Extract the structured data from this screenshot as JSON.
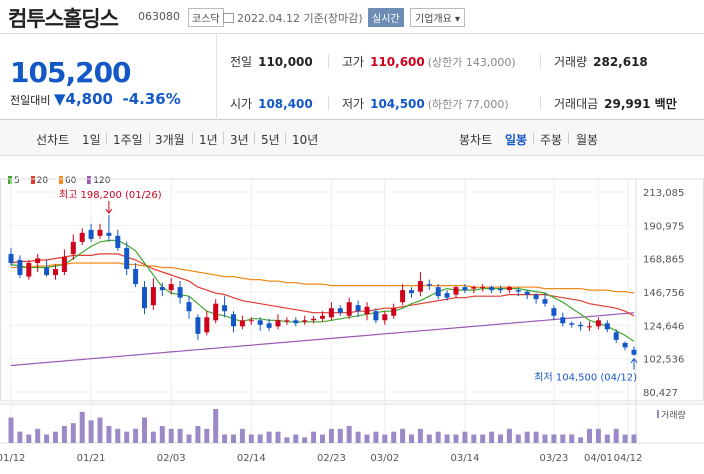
{
  "header": {
    "stock_name": "컴투스홀딩스",
    "stock_code": "063080",
    "market": "코스닥",
    "date_text": "2022.04.12  기준(장마감)",
    "realtime_label": "실시간",
    "company_label": "기업개요"
  },
  "price": {
    "current": "105,200",
    "change_label": "전일대비",
    "change_amount": "4,800",
    "change_pct": "-4.36%"
  },
  "stats": {
    "prev_close_label": "전일",
    "prev_close": "110,000",
    "high_label": "고가",
    "high": "110,600",
    "upper_limit": "(상한가 143,000)",
    "volume_label": "거래량",
    "volume": "282,618",
    "open_label": "시가",
    "open": "108,400",
    "low_label": "저가",
    "low": "104,500",
    "lower_limit": "(하한가 77,000)",
    "amount_label": "거래대금",
    "amount": "29,991 백만"
  },
  "periods": {
    "line_chart": "선차트",
    "items": [
      "1일",
      "1주일",
      "3개월",
      "1년",
      "3년",
      "5년",
      "10년"
    ],
    "candle_chart": "봉차트",
    "candle_items": [
      "일봉",
      "주봉",
      "월봉"
    ],
    "active_candle": "일봉"
  },
  "colors": {
    "up": "#d0021b",
    "down": "#1458c8",
    "ma5": "#42a82e",
    "ma20": "#e03c31",
    "ma60": "#f08c1e",
    "ma120": "#9b59b6"
  },
  "legend": [
    {
      "label": "5",
      "color": "#42a82e"
    },
    {
      "label": "20",
      "color": "#e03c31"
    },
    {
      "label": "60",
      "color": "#f08c1e"
    },
    {
      "label": "120",
      "color": "#9b59b6"
    }
  ],
  "chart_data": {
    "type": "candlestick",
    "y_ticks": [
      "213,085",
      "190,975",
      "168,865",
      "146,756",
      "124,646",
      "102,536",
      "80,427"
    ],
    "ylim": [
      80427,
      213085
    ],
    "x_ticks": [
      "01/12",
      "01/21",
      "02/03",
      "02/14",
      "02/23",
      "03/02",
      "03/14",
      "03/23",
      "04/01",
      "04/12"
    ],
    "high_annotation": "최고 198,200 (01/26)",
    "low_annotation": "최저 104,500 (04/12)",
    "volume_label": "거래량",
    "candles": [
      [
        172,
        166,
        176,
        164
      ],
      [
        168,
        158,
        171,
        156
      ],
      [
        157,
        166,
        168,
        155
      ],
      [
        166,
        169,
        172,
        160
      ],
      [
        163,
        158,
        168,
        157
      ],
      [
        158,
        162,
        165,
        155
      ],
      [
        160,
        170,
        175,
        158
      ],
      [
        172,
        180,
        185,
        168
      ],
      [
        180,
        186,
        189,
        178
      ],
      [
        188,
        182,
        192,
        180
      ],
      [
        184,
        188,
        192,
        182
      ],
      [
        186,
        184,
        198,
        180
      ],
      [
        184,
        176,
        188,
        174
      ],
      [
        176,
        162,
        180,
        158
      ],
      [
        162,
        152,
        166,
        150
      ],
      [
        150,
        136,
        154,
        132
      ],
      [
        138,
        150,
        156,
        135
      ],
      [
        150,
        148,
        153,
        144
      ],
      [
        148,
        152,
        156,
        145
      ],
      [
        150,
        143,
        154,
        139
      ],
      [
        140,
        134,
        144,
        129
      ],
      [
        130,
        119,
        132,
        115
      ],
      [
        120,
        130,
        134,
        118
      ],
      [
        128,
        139,
        142,
        126
      ],
      [
        138,
        134,
        144,
        130
      ],
      [
        132,
        124,
        134,
        120
      ],
      [
        124,
        128,
        131,
        122
      ],
      [
        128,
        128,
        130,
        125
      ],
      [
        128,
        125,
        130,
        121
      ],
      [
        126,
        123,
        129,
        121
      ],
      [
        124,
        128,
        132,
        122
      ],
      [
        128,
        128,
        130,
        125
      ],
      [
        128,
        126,
        130,
        124
      ],
      [
        127,
        128,
        131,
        125
      ],
      [
        128,
        129,
        131,
        126
      ],
      [
        129,
        131,
        134,
        127
      ],
      [
        130,
        136,
        140,
        128
      ],
      [
        136,
        133,
        138,
        131
      ],
      [
        131,
        140,
        143,
        129
      ],
      [
        138,
        134,
        141,
        130
      ],
      [
        132,
        137,
        140,
        128
      ],
      [
        134,
        128,
        136,
        126
      ],
      [
        128,
        132,
        134,
        125
      ],
      [
        131,
        136,
        139,
        129
      ],
      [
        140,
        148,
        152,
        138
      ],
      [
        148,
        146,
        150,
        143
      ],
      [
        147,
        154,
        160,
        144
      ],
      [
        152,
        151,
        155,
        148
      ],
      [
        150,
        144,
        152,
        142
      ],
      [
        146,
        143,
        148,
        141
      ],
      [
        145,
        150,
        151,
        143
      ],
      [
        150,
        148,
        152,
        146
      ],
      [
        149,
        150,
        151,
        146
      ],
      [
        150,
        150,
        152,
        147
      ],
      [
        150,
        148,
        151,
        146
      ],
      [
        149,
        148,
        151,
        146
      ],
      [
        148,
        150,
        151,
        146
      ],
      [
        148,
        147,
        150,
        144
      ],
      [
        147,
        145,
        148,
        142
      ],
      [
        145,
        142,
        146,
        139
      ],
      [
        142,
        139,
        146,
        137
      ],
      [
        136,
        131,
        138,
        128
      ],
      [
        130,
        126,
        133,
        124
      ],
      [
        126,
        125,
        127,
        123
      ],
      [
        125,
        124,
        127,
        121
      ],
      [
        124,
        124,
        127,
        121
      ],
      [
        124,
        128,
        130,
        122
      ],
      [
        126,
        122,
        128,
        120
      ],
      [
        120,
        115,
        122,
        113
      ],
      [
        113,
        110,
        114,
        108
      ],
      [
        108.4,
        105.2,
        110.6,
        104.5
      ]
    ],
    "volumes": [
      9,
      4,
      3,
      5,
      3,
      4,
      6,
      7,
      11,
      8,
      9,
      6,
      5,
      4,
      5,
      9,
      4,
      6,
      5,
      5,
      3,
      6,
      5,
      12,
      3,
      3,
      5,
      3,
      3,
      4,
      4,
      2,
      3,
      2,
      4,
      3,
      5,
      5,
      6,
      4,
      3,
      4,
      3,
      4,
      5,
      3,
      5,
      3,
      4,
      3,
      3,
      4,
      3,
      3,
      4,
      3,
      5,
      3,
      4,
      4,
      3,
      3,
      3,
      3,
      2,
      5,
      5,
      3,
      5,
      3,
      3
    ],
    "ma5": [
      165,
      164,
      163,
      163,
      163,
      164,
      165,
      169,
      173,
      177,
      180,
      181,
      181,
      178,
      174,
      166,
      158,
      150,
      146,
      145,
      144,
      139,
      134,
      132,
      131,
      129,
      127,
      129,
      129,
      128,
      128,
      127,
      127,
      127,
      127,
      127,
      128,
      129,
      130,
      131,
      132,
      133,
      134,
      134,
      136,
      139,
      141,
      144,
      147,
      149,
      148,
      148,
      148,
      149,
      149,
      149,
      149,
      149,
      148,
      147,
      146,
      143,
      140,
      136,
      132,
      128,
      126,
      124,
      121,
      118,
      114
    ],
    "ma20": [
      166,
      167,
      167,
      168,
      168,
      169,
      170,
      171,
      171,
      171,
      172,
      172,
      172,
      170,
      168,
      165,
      162,
      160,
      158,
      156,
      154,
      150,
      148,
      146,
      145,
      143,
      141,
      140,
      139,
      138,
      137,
      136,
      135,
      134,
      133,
      133,
      133,
      133,
      133,
      134,
      134,
      135,
      136,
      136,
      137,
      138,
      139,
      140,
      141,
      142,
      143,
      143,
      144,
      144,
      144,
      144,
      145,
      145,
      145,
      145,
      145,
      144,
      143,
      142,
      141,
      139,
      138,
      137,
      136,
      134,
      131
    ],
    "ma60": [
      163,
      163,
      163,
      164,
      164,
      165,
      165,
      166,
      166,
      166,
      166,
      166,
      166,
      165,
      165,
      164,
      164,
      163,
      163,
      162,
      161,
      160,
      159,
      158,
      157,
      157,
      156,
      155,
      155,
      154,
      154,
      153,
      153,
      152,
      152,
      152,
      151,
      151,
      151,
      151,
      151,
      151,
      151,
      151,
      151,
      151,
      151,
      151,
      151,
      151,
      151,
      151,
      150,
      150,
      150,
      150,
      150,
      150,
      150,
      150,
      149,
      149,
      149,
      149,
      149,
      148,
      148,
      148,
      147,
      147,
      146
    ],
    "ma120": [
      98,
      98.5,
      99,
      99.5,
      100,
      100.5,
      101,
      101.5,
      102,
      102.5,
      103,
      103.5,
      104,
      104.5,
      105,
      105.5,
      106,
      106.5,
      107,
      107.5,
      108,
      108.5,
      109,
      109.5,
      110,
      110.5,
      111,
      111.5,
      112,
      112.5,
      113,
      113.5,
      114,
      114.5,
      115,
      115.5,
      116,
      116.5,
      117,
      117.5,
      118,
      118.5,
      119,
      119.5,
      120,
      120.5,
      121,
      121.5,
      122,
      122.5,
      123,
      123.5,
      124,
      124.5,
      125,
      125.5,
      126,
      126.5,
      127,
      127.5,
      128,
      128.5,
      129,
      129.5,
      130,
      130.5,
      131,
      131.5,
      132,
      132.5,
      133
    ]
  }
}
